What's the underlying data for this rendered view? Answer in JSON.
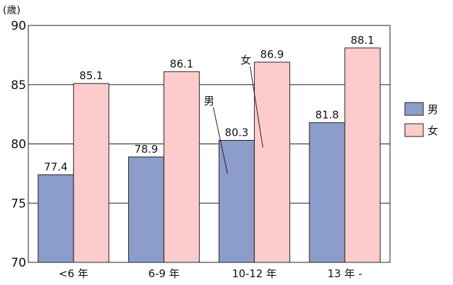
{
  "chart_data": {
    "type": "bar",
    "y_unit": "(歳)",
    "categories": [
      "<6 年",
      "6-9 年",
      "10-12 年",
      "13 年 -"
    ],
    "series": [
      {
        "name": "男",
        "values": [
          77.4,
          78.9,
          80.3,
          81.8
        ],
        "color": "#8c9ccb"
      },
      {
        "name": "女",
        "values": [
          85.1,
          86.1,
          86.9,
          88.1
        ],
        "color": "#fccccc"
      }
    ],
    "ylim": [
      70,
      90
    ],
    "yticks": [
      70,
      75,
      80,
      85,
      90
    ],
    "grid": true,
    "legend": "right",
    "annotations": [
      {
        "text": "男",
        "series": 0,
        "category": 2
      },
      {
        "text": "女",
        "series": 1,
        "category": 2
      }
    ]
  }
}
